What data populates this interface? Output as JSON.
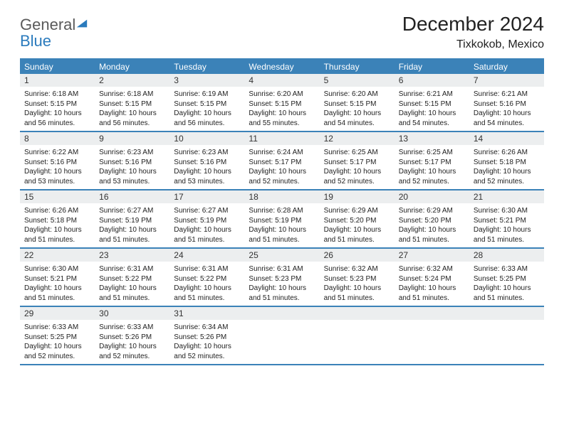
{
  "logo": {
    "general": "General",
    "blue": "Blue",
    "icon_color": "#2b7bbd"
  },
  "title": "December 2024",
  "location": "Tixkokob, Mexico",
  "colors": {
    "header_bar": "#3b82b8",
    "header_text": "#ffffff",
    "daynum_bg": "#eceeef",
    "border": "#3b82b8",
    "body_text": "#222222"
  },
  "typography": {
    "title_fontsize": 28,
    "location_fontsize": 16,
    "dow_fontsize": 12,
    "daynum_fontsize": 12,
    "body_fontsize": 10
  },
  "days_of_week": [
    "Sunday",
    "Monday",
    "Tuesday",
    "Wednesday",
    "Thursday",
    "Friday",
    "Saturday"
  ],
  "weeks": [
    [
      {
        "n": "1",
        "sunrise": "Sunrise: 6:18 AM",
        "sunset": "Sunset: 5:15 PM",
        "daylight": "Daylight: 10 hours and 56 minutes."
      },
      {
        "n": "2",
        "sunrise": "Sunrise: 6:18 AM",
        "sunset": "Sunset: 5:15 PM",
        "daylight": "Daylight: 10 hours and 56 minutes."
      },
      {
        "n": "3",
        "sunrise": "Sunrise: 6:19 AM",
        "sunset": "Sunset: 5:15 PM",
        "daylight": "Daylight: 10 hours and 56 minutes."
      },
      {
        "n": "4",
        "sunrise": "Sunrise: 6:20 AM",
        "sunset": "Sunset: 5:15 PM",
        "daylight": "Daylight: 10 hours and 55 minutes."
      },
      {
        "n": "5",
        "sunrise": "Sunrise: 6:20 AM",
        "sunset": "Sunset: 5:15 PM",
        "daylight": "Daylight: 10 hours and 54 minutes."
      },
      {
        "n": "6",
        "sunrise": "Sunrise: 6:21 AM",
        "sunset": "Sunset: 5:15 PM",
        "daylight": "Daylight: 10 hours and 54 minutes."
      },
      {
        "n": "7",
        "sunrise": "Sunrise: 6:21 AM",
        "sunset": "Sunset: 5:16 PM",
        "daylight": "Daylight: 10 hours and 54 minutes."
      }
    ],
    [
      {
        "n": "8",
        "sunrise": "Sunrise: 6:22 AM",
        "sunset": "Sunset: 5:16 PM",
        "daylight": "Daylight: 10 hours and 53 minutes."
      },
      {
        "n": "9",
        "sunrise": "Sunrise: 6:23 AM",
        "sunset": "Sunset: 5:16 PM",
        "daylight": "Daylight: 10 hours and 53 minutes."
      },
      {
        "n": "10",
        "sunrise": "Sunrise: 6:23 AM",
        "sunset": "Sunset: 5:16 PM",
        "daylight": "Daylight: 10 hours and 53 minutes."
      },
      {
        "n": "11",
        "sunrise": "Sunrise: 6:24 AM",
        "sunset": "Sunset: 5:17 PM",
        "daylight": "Daylight: 10 hours and 52 minutes."
      },
      {
        "n": "12",
        "sunrise": "Sunrise: 6:25 AM",
        "sunset": "Sunset: 5:17 PM",
        "daylight": "Daylight: 10 hours and 52 minutes."
      },
      {
        "n": "13",
        "sunrise": "Sunrise: 6:25 AM",
        "sunset": "Sunset: 5:17 PM",
        "daylight": "Daylight: 10 hours and 52 minutes."
      },
      {
        "n": "14",
        "sunrise": "Sunrise: 6:26 AM",
        "sunset": "Sunset: 5:18 PM",
        "daylight": "Daylight: 10 hours and 52 minutes."
      }
    ],
    [
      {
        "n": "15",
        "sunrise": "Sunrise: 6:26 AM",
        "sunset": "Sunset: 5:18 PM",
        "daylight": "Daylight: 10 hours and 51 minutes."
      },
      {
        "n": "16",
        "sunrise": "Sunrise: 6:27 AM",
        "sunset": "Sunset: 5:19 PM",
        "daylight": "Daylight: 10 hours and 51 minutes."
      },
      {
        "n": "17",
        "sunrise": "Sunrise: 6:27 AM",
        "sunset": "Sunset: 5:19 PM",
        "daylight": "Daylight: 10 hours and 51 minutes."
      },
      {
        "n": "18",
        "sunrise": "Sunrise: 6:28 AM",
        "sunset": "Sunset: 5:19 PM",
        "daylight": "Daylight: 10 hours and 51 minutes."
      },
      {
        "n": "19",
        "sunrise": "Sunrise: 6:29 AM",
        "sunset": "Sunset: 5:20 PM",
        "daylight": "Daylight: 10 hours and 51 minutes."
      },
      {
        "n": "20",
        "sunrise": "Sunrise: 6:29 AM",
        "sunset": "Sunset: 5:20 PM",
        "daylight": "Daylight: 10 hours and 51 minutes."
      },
      {
        "n": "21",
        "sunrise": "Sunrise: 6:30 AM",
        "sunset": "Sunset: 5:21 PM",
        "daylight": "Daylight: 10 hours and 51 minutes."
      }
    ],
    [
      {
        "n": "22",
        "sunrise": "Sunrise: 6:30 AM",
        "sunset": "Sunset: 5:21 PM",
        "daylight": "Daylight: 10 hours and 51 minutes."
      },
      {
        "n": "23",
        "sunrise": "Sunrise: 6:31 AM",
        "sunset": "Sunset: 5:22 PM",
        "daylight": "Daylight: 10 hours and 51 minutes."
      },
      {
        "n": "24",
        "sunrise": "Sunrise: 6:31 AM",
        "sunset": "Sunset: 5:22 PM",
        "daylight": "Daylight: 10 hours and 51 minutes."
      },
      {
        "n": "25",
        "sunrise": "Sunrise: 6:31 AM",
        "sunset": "Sunset: 5:23 PM",
        "daylight": "Daylight: 10 hours and 51 minutes."
      },
      {
        "n": "26",
        "sunrise": "Sunrise: 6:32 AM",
        "sunset": "Sunset: 5:23 PM",
        "daylight": "Daylight: 10 hours and 51 minutes."
      },
      {
        "n": "27",
        "sunrise": "Sunrise: 6:32 AM",
        "sunset": "Sunset: 5:24 PM",
        "daylight": "Daylight: 10 hours and 51 minutes."
      },
      {
        "n": "28",
        "sunrise": "Sunrise: 6:33 AM",
        "sunset": "Sunset: 5:25 PM",
        "daylight": "Daylight: 10 hours and 51 minutes."
      }
    ],
    [
      {
        "n": "29",
        "sunrise": "Sunrise: 6:33 AM",
        "sunset": "Sunset: 5:25 PM",
        "daylight": "Daylight: 10 hours and 52 minutes."
      },
      {
        "n": "30",
        "sunrise": "Sunrise: 6:33 AM",
        "sunset": "Sunset: 5:26 PM",
        "daylight": "Daylight: 10 hours and 52 minutes."
      },
      {
        "n": "31",
        "sunrise": "Sunrise: 6:34 AM",
        "sunset": "Sunset: 5:26 PM",
        "daylight": "Daylight: 10 hours and 52 minutes."
      },
      {
        "n": "",
        "empty": true
      },
      {
        "n": "",
        "empty": true
      },
      {
        "n": "",
        "empty": true
      },
      {
        "n": "",
        "empty": true
      }
    ]
  ]
}
